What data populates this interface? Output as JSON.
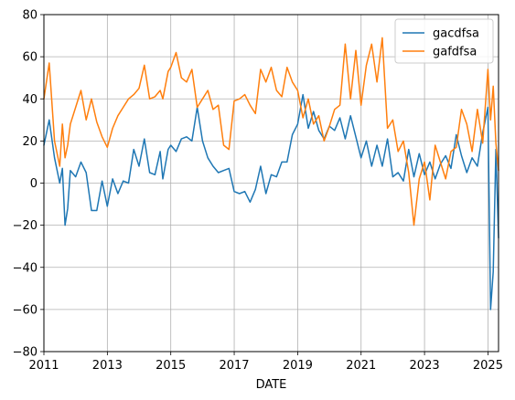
{
  "chart_data": {
    "type": "line",
    "xlabel": "DATE",
    "ylabel": "",
    "xlim": [
      "2011-01-01",
      "2025-05-01"
    ],
    "ylim": [
      -80,
      80
    ],
    "x_ticks": [
      "2011",
      "2013",
      "2015",
      "2017",
      "2019",
      "2021",
      "2023",
      "2025"
    ],
    "y_ticks": [
      "80",
      "60",
      "40",
      "20",
      "0",
      "−20",
      "−40",
      "−60",
      "−80"
    ],
    "grid": true,
    "legend_position": "upper right",
    "series": [
      {
        "name": "gacdfsa",
        "color": "#1f77b4",
        "points": [
          [
            "2011-01",
            18
          ],
          [
            "2011-03",
            30
          ],
          [
            "2011-05",
            12
          ],
          [
            "2011-07",
            0
          ],
          [
            "2011-08",
            7
          ],
          [
            "2011-09",
            -20
          ],
          [
            "2011-10",
            -12
          ],
          [
            "2011-11",
            6
          ],
          [
            "2012-01",
            3
          ],
          [
            "2012-03",
            10
          ],
          [
            "2012-05",
            5
          ],
          [
            "2012-07",
            -13
          ],
          [
            "2012-09",
            -13
          ],
          [
            "2012-11",
            1
          ],
          [
            "2013-01",
            -11
          ],
          [
            "2013-03",
            2
          ],
          [
            "2013-05",
            -5
          ],
          [
            "2013-07",
            1
          ],
          [
            "2013-09",
            0
          ],
          [
            "2013-11",
            16
          ],
          [
            "2014-01",
            8
          ],
          [
            "2014-03",
            21
          ],
          [
            "2014-05",
            5
          ],
          [
            "2014-07",
            4
          ],
          [
            "2014-09",
            15
          ],
          [
            "2014-10",
            2
          ],
          [
            "2014-12",
            16
          ],
          [
            "2015-01",
            18
          ],
          [
            "2015-03",
            15
          ],
          [
            "2015-05",
            21
          ],
          [
            "2015-07",
            22
          ],
          [
            "2015-09",
            20
          ],
          [
            "2015-11",
            36
          ],
          [
            "2016-01",
            20
          ],
          [
            "2016-03",
            12
          ],
          [
            "2016-05",
            8
          ],
          [
            "2016-07",
            5
          ],
          [
            "2016-09",
            6
          ],
          [
            "2016-11",
            7
          ],
          [
            "2017-01",
            -4
          ],
          [
            "2017-03",
            -5
          ],
          [
            "2017-05",
            -4
          ],
          [
            "2017-07",
            -9
          ],
          [
            "2017-09",
            -3
          ],
          [
            "2017-11",
            8
          ],
          [
            "2018-01",
            -5
          ],
          [
            "2018-03",
            4
          ],
          [
            "2018-05",
            3
          ],
          [
            "2018-07",
            10
          ],
          [
            "2018-09",
            10
          ],
          [
            "2018-11",
            23
          ],
          [
            "2019-01",
            28
          ],
          [
            "2019-03",
            42
          ],
          [
            "2019-05",
            26
          ],
          [
            "2019-07",
            34
          ],
          [
            "2019-09",
            25
          ],
          [
            "2019-11",
            21
          ],
          [
            "2020-01",
            27
          ],
          [
            "2020-03",
            25
          ],
          [
            "2020-05",
            31
          ],
          [
            "2020-07",
            21
          ],
          [
            "2020-09",
            32
          ],
          [
            "2020-11",
            22
          ],
          [
            "2021-01",
            12
          ],
          [
            "2021-03",
            20
          ],
          [
            "2021-05",
            8
          ],
          [
            "2021-07",
            18
          ],
          [
            "2021-09",
            8
          ],
          [
            "2021-11",
            21
          ],
          [
            "2022-01",
            3
          ],
          [
            "2022-03",
            5
          ],
          [
            "2022-05",
            1
          ],
          [
            "2022-07",
            16
          ],
          [
            "2022-09",
            3
          ],
          [
            "2022-11",
            14
          ],
          [
            "2023-01",
            4
          ],
          [
            "2023-03",
            10
          ],
          [
            "2023-05",
            2
          ],
          [
            "2023-07",
            9
          ],
          [
            "2023-09",
            13
          ],
          [
            "2023-11",
            7
          ],
          [
            "2024-01",
            23
          ],
          [
            "2024-03",
            13
          ],
          [
            "2024-05",
            5
          ],
          [
            "2024-07",
            12
          ],
          [
            "2024-09",
            8
          ],
          [
            "2024-11",
            24
          ],
          [
            "2025-01",
            36
          ],
          [
            "2025-02",
            -60
          ],
          [
            "2025-03",
            -42
          ],
          [
            "2025-04",
            16
          ],
          [
            "2025-05",
            -26
          ]
        ]
      },
      {
        "name": "gafdfsa",
        "color": "#ff7f0e",
        "points": [
          [
            "2011-01",
            40
          ],
          [
            "2011-03",
            57
          ],
          [
            "2011-05",
            20
          ],
          [
            "2011-07",
            8
          ],
          [
            "2011-08",
            28
          ],
          [
            "2011-09",
            12
          ],
          [
            "2011-10",
            18
          ],
          [
            "2011-11",
            28
          ],
          [
            "2012-01",
            36
          ],
          [
            "2012-03",
            44
          ],
          [
            "2012-05",
            30
          ],
          [
            "2012-07",
            40
          ],
          [
            "2012-09",
            29
          ],
          [
            "2012-11",
            22
          ],
          [
            "2013-01",
            17
          ],
          [
            "2013-03",
            26
          ],
          [
            "2013-05",
            32
          ],
          [
            "2013-07",
            36
          ],
          [
            "2013-09",
            40
          ],
          [
            "2013-11",
            42
          ],
          [
            "2014-01",
            45
          ],
          [
            "2014-03",
            56
          ],
          [
            "2014-05",
            40
          ],
          [
            "2014-07",
            41
          ],
          [
            "2014-09",
            44
          ],
          [
            "2014-10",
            40
          ],
          [
            "2014-12",
            53
          ],
          [
            "2015-01",
            55
          ],
          [
            "2015-03",
            62
          ],
          [
            "2015-05",
            50
          ],
          [
            "2015-07",
            48
          ],
          [
            "2015-09",
            54
          ],
          [
            "2015-11",
            36
          ],
          [
            "2016-01",
            40
          ],
          [
            "2016-03",
            44
          ],
          [
            "2016-05",
            35
          ],
          [
            "2016-07",
            37
          ],
          [
            "2016-09",
            18
          ],
          [
            "2016-11",
            16
          ],
          [
            "2017-01",
            39
          ],
          [
            "2017-03",
            40
          ],
          [
            "2017-05",
            42
          ],
          [
            "2017-07",
            37
          ],
          [
            "2017-09",
            33
          ],
          [
            "2017-11",
            54
          ],
          [
            "2018-01",
            48
          ],
          [
            "2018-03",
            55
          ],
          [
            "2018-05",
            44
          ],
          [
            "2018-07",
            41
          ],
          [
            "2018-09",
            55
          ],
          [
            "2018-11",
            48
          ],
          [
            "2019-01",
            44
          ],
          [
            "2019-03",
            31
          ],
          [
            "2019-05",
            40
          ],
          [
            "2019-07",
            28
          ],
          [
            "2019-09",
            32
          ],
          [
            "2019-11",
            20
          ],
          [
            "2020-01",
            27
          ],
          [
            "2020-03",
            35
          ],
          [
            "2020-05",
            37
          ],
          [
            "2020-07",
            66
          ],
          [
            "2020-09",
            40
          ],
          [
            "2020-11",
            63
          ],
          [
            "2021-01",
            37
          ],
          [
            "2021-03",
            56
          ],
          [
            "2021-05",
            66
          ],
          [
            "2021-07",
            48
          ],
          [
            "2021-09",
            69
          ],
          [
            "2021-11",
            26
          ],
          [
            "2022-01",
            30
          ],
          [
            "2022-03",
            15
          ],
          [
            "2022-05",
            20
          ],
          [
            "2022-07",
            5
          ],
          [
            "2022-09",
            -20
          ],
          [
            "2022-11",
            2
          ],
          [
            "2023-01",
            10
          ],
          [
            "2023-03",
            -8
          ],
          [
            "2023-05",
            18
          ],
          [
            "2023-07",
            10
          ],
          [
            "2023-09",
            2
          ],
          [
            "2023-11",
            15
          ],
          [
            "2024-01",
            17
          ],
          [
            "2024-03",
            35
          ],
          [
            "2024-05",
            28
          ],
          [
            "2024-07",
            15
          ],
          [
            "2024-09",
            35
          ],
          [
            "2024-11",
            19
          ],
          [
            "2025-01",
            54
          ],
          [
            "2025-02",
            30
          ],
          [
            "2025-03",
            46
          ],
          [
            "2025-04",
            19
          ],
          [
            "2025-05",
            6
          ]
        ]
      }
    ]
  }
}
